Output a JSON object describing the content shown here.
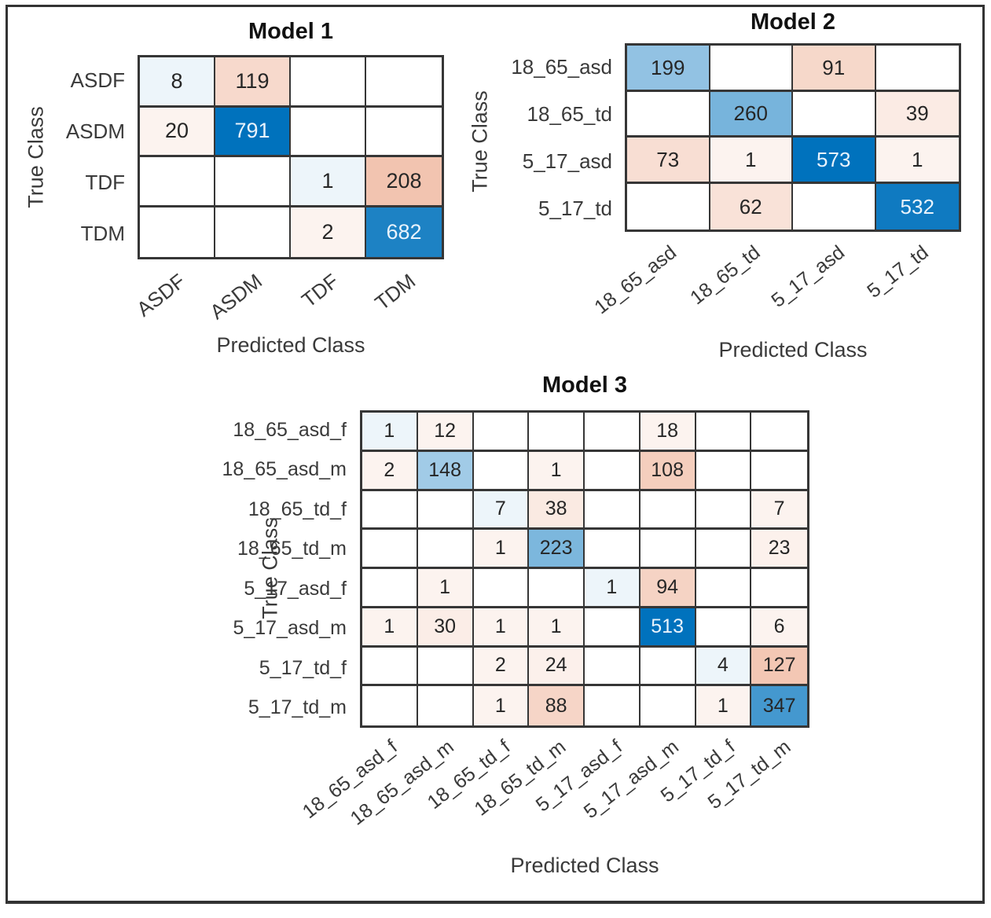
{
  "figure": {
    "background": "#ffffff",
    "frame_color": "#333333"
  },
  "colors": {
    "diagonal": "#0072BD",
    "off_diagonal": "#D95319",
    "grid_line": "#363636",
    "text_dark": "#262626",
    "text_light": "#e9f3fc",
    "label_gray": "#3a3a3a"
  },
  "chart_data": [
    {
      "type": "heatmap",
      "subtype": "confusion-matrix",
      "title": "Model 1",
      "xlabel": "Predicted Class",
      "ylabel": "True Class",
      "legend_position": "none",
      "grid": "on",
      "classes": [
        "ASDF",
        "ASDM",
        "TDF",
        "TDM"
      ],
      "matrix": [
        [
          8,
          119,
          0,
          0
        ],
        [
          20,
          791,
          0,
          0
        ],
        [
          0,
          0,
          1,
          208
        ],
        [
          0,
          0,
          2,
          682
        ]
      ]
    },
    {
      "type": "heatmap",
      "subtype": "confusion-matrix",
      "title": "Model 2",
      "xlabel": "Predicted Class",
      "ylabel": "True Class",
      "legend_position": "none",
      "grid": "on",
      "classes": [
        "18_65_asd",
        "18_65_td",
        "5_17_asd",
        "5_17_td"
      ],
      "matrix": [
        [
          199,
          0,
          91,
          0
        ],
        [
          0,
          260,
          0,
          39
        ],
        [
          73,
          1,
          573,
          1
        ],
        [
          0,
          62,
          0,
          532
        ]
      ]
    },
    {
      "type": "heatmap",
      "subtype": "confusion-matrix",
      "title": "Model 3",
      "xlabel": "Predicted Class",
      "ylabel": "True Class",
      "legend_position": "none",
      "grid": "on",
      "classes": [
        "18_65_asd_f",
        "18_65_asd_m",
        "18_65_td_f",
        "18_65_td_m",
        "5_17_asd_f",
        "5_17_asd_m",
        "5_17_td_f",
        "5_17_td_m"
      ],
      "matrix": [
        [
          1,
          12,
          0,
          0,
          0,
          18,
          0,
          0
        ],
        [
          2,
          148,
          0,
          1,
          0,
          108,
          0,
          0
        ],
        [
          0,
          0,
          7,
          38,
          0,
          0,
          0,
          7
        ],
        [
          0,
          0,
          1,
          223,
          0,
          0,
          0,
          23
        ],
        [
          0,
          1,
          0,
          0,
          1,
          94,
          0,
          0
        ],
        [
          1,
          30,
          1,
          1,
          0,
          513,
          0,
          6
        ],
        [
          0,
          0,
          2,
          24,
          0,
          0,
          4,
          127
        ],
        [
          0,
          0,
          1,
          88,
          0,
          0,
          1,
          347
        ]
      ]
    }
  ]
}
